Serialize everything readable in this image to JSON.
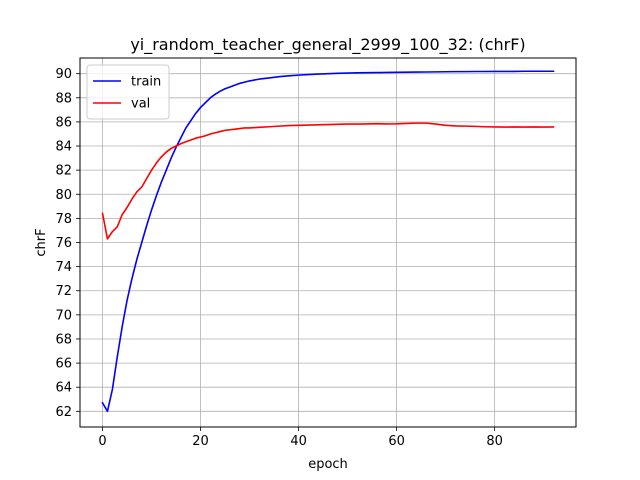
{
  "chart_data": {
    "type": "line",
    "title": "yi_random_teacher_general_2999_100_32: (chrF)",
    "xlabel": "epoch",
    "ylabel": "chrF",
    "xlim": [
      -4.6,
      96.6
    ],
    "ylim": [
      60.7,
      91.3
    ],
    "xticks": [
      0,
      20,
      40,
      60,
      80
    ],
    "yticks": [
      62,
      64,
      66,
      68,
      70,
      72,
      74,
      76,
      78,
      80,
      82,
      84,
      86,
      88,
      90
    ],
    "grid": true,
    "legend_position": "top-left",
    "series": [
      {
        "name": "train",
        "color": "#0000ff",
        "x": [
          0,
          1,
          2,
          3,
          4,
          5,
          6,
          7,
          8,
          9,
          10,
          11,
          12,
          13,
          14,
          15,
          16,
          17,
          18,
          19,
          20,
          21,
          22,
          23,
          24,
          25,
          26,
          27,
          28,
          29,
          30,
          32,
          34,
          36,
          38,
          40,
          42,
          44,
          46,
          48,
          50,
          52,
          54,
          56,
          58,
          60,
          62,
          64,
          66,
          68,
          70,
          72,
          74,
          76,
          78,
          80,
          82,
          84,
          86,
          88,
          90,
          92
        ],
        "values": [
          62.7,
          62.0,
          63.8,
          66.5,
          69.0,
          71.2,
          73.0,
          74.6,
          76.0,
          77.4,
          78.7,
          79.9,
          81.0,
          82.0,
          83.0,
          83.9,
          84.7,
          85.5,
          86.1,
          86.7,
          87.2,
          87.6,
          88.0,
          88.3,
          88.55,
          88.75,
          88.9,
          89.05,
          89.2,
          89.3,
          89.4,
          89.55,
          89.65,
          89.75,
          89.82,
          89.88,
          89.93,
          89.97,
          90.0,
          90.03,
          90.05,
          90.07,
          90.08,
          90.09,
          90.1,
          90.11,
          90.12,
          90.13,
          90.14,
          90.15,
          90.16,
          90.17,
          90.17,
          90.18,
          90.18,
          90.19,
          90.19,
          90.19,
          90.2,
          90.2,
          90.2,
          90.2
        ]
      },
      {
        "name": "val",
        "color": "#ff0000",
        "x": [
          0,
          1,
          2,
          3,
          4,
          5,
          6,
          7,
          8,
          9,
          10,
          11,
          12,
          13,
          14,
          15,
          16,
          17,
          18,
          19,
          20,
          21,
          22,
          23,
          24,
          25,
          26,
          27,
          28,
          29,
          30,
          32,
          34,
          36,
          38,
          40,
          42,
          44,
          46,
          48,
          50,
          52,
          54,
          56,
          58,
          60,
          62,
          64,
          66,
          68,
          70,
          72,
          74,
          76,
          78,
          80,
          82,
          84,
          86,
          88,
          90,
          92
        ],
        "values": [
          78.4,
          76.3,
          76.9,
          77.3,
          78.3,
          78.9,
          79.6,
          80.2,
          80.6,
          81.3,
          82.0,
          82.6,
          83.1,
          83.5,
          83.8,
          84.0,
          84.2,
          84.35,
          84.5,
          84.65,
          84.75,
          84.85,
          85.0,
          85.1,
          85.2,
          85.3,
          85.35,
          85.4,
          85.45,
          85.5,
          85.5,
          85.55,
          85.6,
          85.65,
          85.7,
          85.72,
          85.74,
          85.76,
          85.78,
          85.8,
          85.82,
          85.82,
          85.83,
          85.85,
          85.83,
          85.84,
          85.87,
          85.9,
          85.9,
          85.82,
          85.72,
          85.67,
          85.65,
          85.63,
          85.6,
          85.58,
          85.57,
          85.58,
          85.57,
          85.58,
          85.57,
          85.58
        ]
      }
    ]
  }
}
